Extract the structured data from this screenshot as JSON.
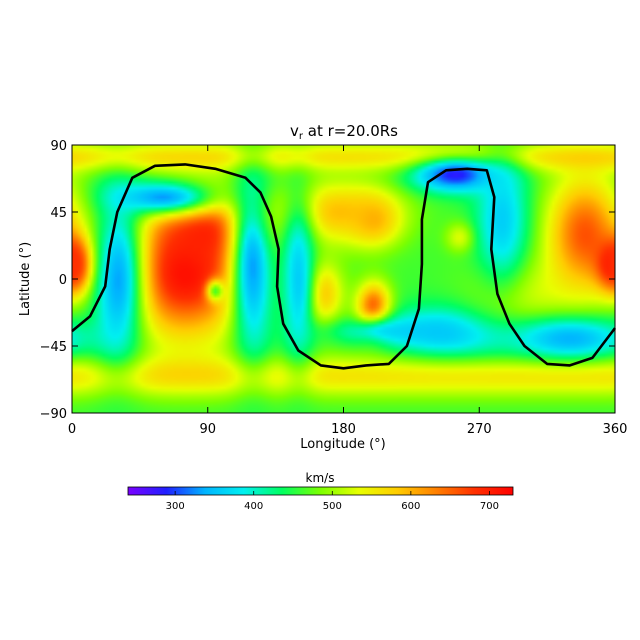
{
  "chart_data": {
    "type": "heatmap",
    "title": "v, at r=20.0Rs",
    "title_main": "v",
    "title_sub": "r",
    "title_rest": " at r=20.0Rs",
    "xlabel": "Longitude (°)",
    "ylabel": "Latitude (°)",
    "xlim": [
      0,
      360
    ],
    "ylim": [
      -90,
      90
    ],
    "xticks": [
      0,
      90,
      180,
      270,
      360
    ],
    "yticks": [
      -90,
      -45,
      0,
      45,
      90
    ],
    "xtick_labels": [
      "0",
      "90",
      "180",
      "270",
      "360"
    ],
    "ytick_labels": [
      "−90",
      "−45",
      "0",
      "45",
      "90"
    ],
    "colorbar": {
      "label": "km/s",
      "range": [
        240,
        730
      ],
      "ticks": [
        300,
        400,
        500,
        600,
        700
      ],
      "tick_labels": [
        "300",
        "400",
        "500",
        "600",
        "700"
      ],
      "colormap": [
        "#7a00ff",
        "#2020ff",
        "#00b4ff",
        "#00f0f0",
        "#00ff60",
        "#7cff00",
        "#e8ff00",
        "#ffcc00",
        "#ff8000",
        "#ff3000",
        "#ff0000"
      ]
    },
    "field": {
      "background": 460,
      "north_band": {
        "lat": 82,
        "width": 10,
        "value": 560
      },
      "south_band": {
        "lat": -65,
        "width": 14,
        "value": 560
      },
      "blobs": [
        {
          "lon": 75,
          "lat": 5,
          "slon": 30,
          "slat": 32,
          "value": 720
        },
        {
          "lon": 90,
          "lat": 30,
          "slon": 22,
          "slat": 18,
          "value": 700
        },
        {
          "lon": 95,
          "lat": -8,
          "slon": 4,
          "slat": 5,
          "value": 470
        },
        {
          "lon": 60,
          "lat": 55,
          "slon": 25,
          "slat": 8,
          "value": 330
        },
        {
          "lon": 30,
          "lat": 0,
          "slon": 12,
          "slat": 40,
          "value": 330
        },
        {
          "lon": 120,
          "lat": 10,
          "slon": 10,
          "slat": 45,
          "value": 330
        },
        {
          "lon": 175,
          "lat": 45,
          "slon": 28,
          "slat": 15,
          "value": 590
        },
        {
          "lon": 200,
          "lat": 40,
          "slon": 12,
          "slat": 12,
          "value": 600
        },
        {
          "lon": 165,
          "lat": -10,
          "slon": 10,
          "slat": 15,
          "value": 600
        },
        {
          "lon": 200,
          "lat": -20,
          "slon": 8,
          "slat": 12,
          "value": 680
        },
        {
          "lon": 215,
          "lat": -35,
          "slon": 30,
          "slat": 6,
          "value": 380
        },
        {
          "lon": 150,
          "lat": 0,
          "slon": 8,
          "slat": 40,
          "value": 360
        },
        {
          "lon": 255,
          "lat": 70,
          "slon": 20,
          "slat": 8,
          "value": 280
        },
        {
          "lon": 258,
          "lat": 28,
          "slon": 7,
          "slat": 7,
          "value": 540
        },
        {
          "lon": 250,
          "lat": -35,
          "slon": 30,
          "slat": 12,
          "value": 350
        },
        {
          "lon": 300,
          "lat": -10,
          "slon": 25,
          "slat": 18,
          "value": 520
        },
        {
          "lon": 340,
          "lat": 30,
          "slon": 18,
          "slat": 28,
          "value": 660
        },
        {
          "lon": 358,
          "lat": 10,
          "slon": 8,
          "slat": 12,
          "value": 720
        },
        {
          "lon": 2,
          "lat": 10,
          "slon": 6,
          "slat": 12,
          "value": 680
        },
        {
          "lon": 330,
          "lat": -40,
          "slon": 28,
          "slat": 10,
          "value": 340
        },
        {
          "lon": 285,
          "lat": 40,
          "slon": 12,
          "slat": 30,
          "value": 360
        }
      ]
    },
    "contours": [
      {
        "name": "neutral-line-west",
        "points": [
          [
            0,
            -35
          ],
          [
            12,
            -25
          ],
          [
            22,
            -5
          ],
          [
            25,
            20
          ],
          [
            30,
            45
          ],
          [
            40,
            68
          ],
          [
            55,
            76
          ],
          [
            75,
            77
          ],
          [
            95,
            74
          ],
          [
            115,
            68
          ],
          [
            125,
            58
          ],
          [
            132,
            42
          ],
          [
            137,
            20
          ],
          [
            136,
            -5
          ],
          [
            140,
            -30
          ],
          [
            150,
            -48
          ],
          [
            165,
            -58
          ],
          [
            180,
            -60
          ],
          [
            195,
            -58
          ],
          [
            210,
            -57
          ],
          [
            222,
            -45
          ],
          [
            230,
            -20
          ],
          [
            232,
            10
          ],
          [
            232,
            40
          ],
          [
            236,
            65
          ],
          [
            248,
            73
          ],
          [
            262,
            74
          ],
          [
            275,
            73
          ],
          [
            280,
            55
          ],
          [
            278,
            20
          ],
          [
            282,
            -10
          ],
          [
            290,
            -30
          ],
          [
            300,
            -45
          ],
          [
            315,
            -57
          ],
          [
            330,
            -58
          ],
          [
            345,
            -53
          ],
          [
            360,
            -33
          ]
        ]
      }
    ]
  }
}
